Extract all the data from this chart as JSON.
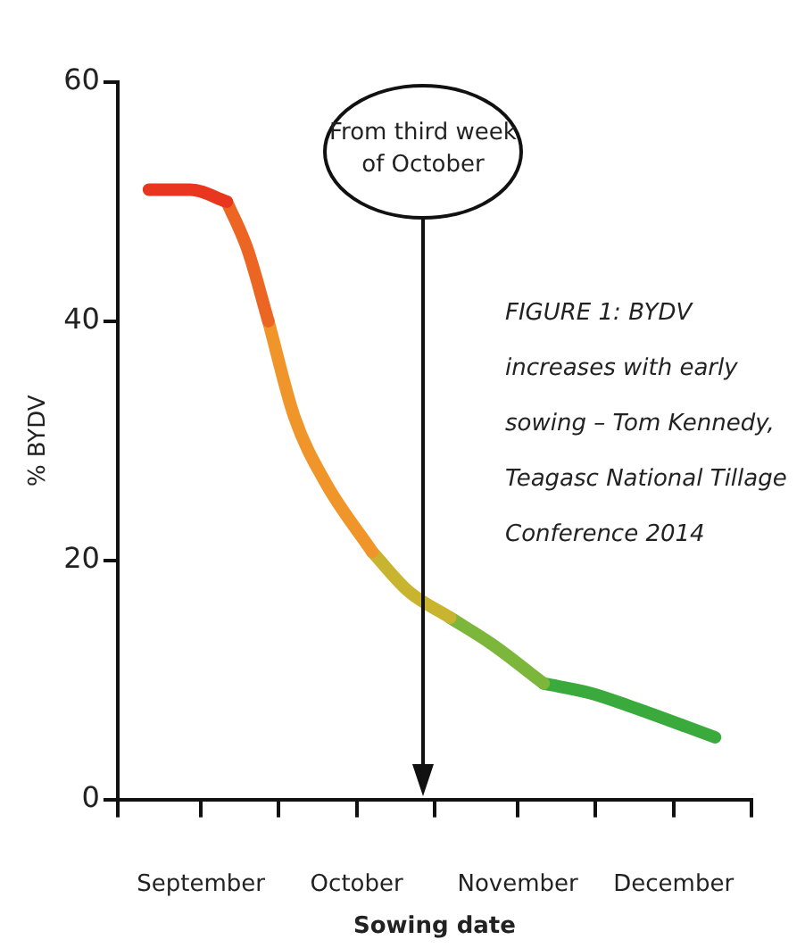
{
  "chart_data": {
    "type": "line",
    "xlabel": "Sowing date",
    "ylabel": "% BYDV",
    "xlim": [
      "--08-16",
      "--12-16"
    ],
    "xticks": [
      {
        "value": "--08-16",
        "label": null
      },
      {
        "value": "--09-01",
        "label": "September"
      },
      {
        "value": "--09-16",
        "label": null
      },
      {
        "value": "--10-01",
        "label": "October"
      },
      {
        "value": "--10-16",
        "label": null
      },
      {
        "value": "--11-01",
        "label": "November"
      },
      {
        "value": "--11-16",
        "label": null
      },
      {
        "value": "--12-01",
        "label": "December"
      },
      {
        "value": "--12-16",
        "label": null
      }
    ],
    "ylim": [
      0,
      60
    ],
    "yticks": [
      0,
      20,
      40,
      60
    ],
    "series": [
      {
        "color": "#e8371e",
        "x": [
          "--08-22",
          "--08-30",
          "--09-06"
        ],
        "values": [
          51,
          51,
          50
        ]
      },
      {
        "color": "#ec6522",
        "x": [
          "--09-06",
          "--09-10",
          "--09-14"
        ],
        "values": [
          50,
          46,
          40
        ]
      },
      {
        "color": "#f0952a",
        "x": [
          "--09-14",
          "--09-19",
          "--09-25",
          "--10-04"
        ],
        "values": [
          40,
          32,
          26.5,
          20.7
        ]
      },
      {
        "color": "#c8b42e",
        "x": [
          "--10-04",
          "--10-11",
          "--10-19"
        ],
        "values": [
          20.7,
          17.4,
          15.2
        ]
      },
      {
        "color": "#7cb63a",
        "x": [
          "--10-19",
          "--10-27",
          "--11-06"
        ],
        "values": [
          15.2,
          13,
          9.7
        ]
      },
      {
        "color": "#3aaa3c",
        "x": [
          "--11-06",
          "--11-15",
          "--11-22",
          "--12-09"
        ],
        "values": [
          9.7,
          8.9,
          7.9,
          5.2
        ]
      }
    ],
    "grid": false,
    "legend": false,
    "marker": "none",
    "annotations": [
      "From third week of October",
      "FIGURE 1: BYDV increases with early sowing – Tom Kennedy, Teagasc National Tillage Conference 2014"
    ]
  }
}
